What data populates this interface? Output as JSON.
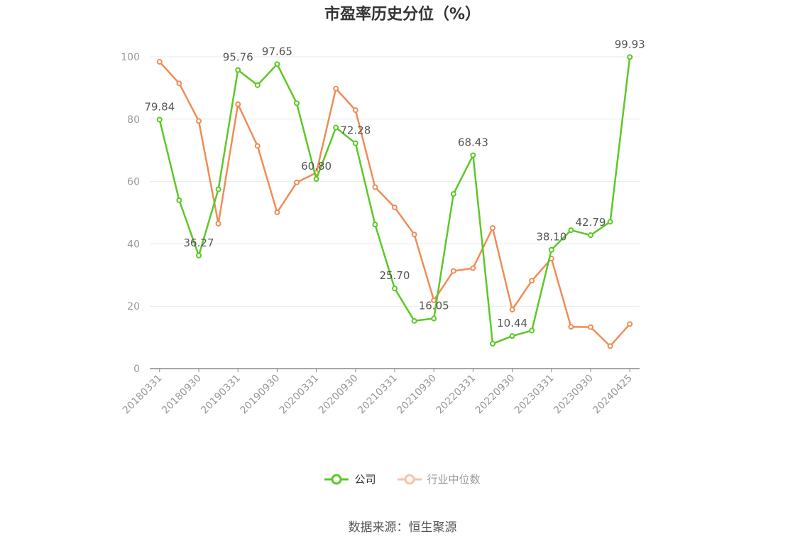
{
  "colors": {
    "company": "#5cc827",
    "industry": "#f08c56",
    "grid": "#e5e8ef",
    "axis": "#999999",
    "label": "#555555"
  },
  "chart_data": {
    "type": "line",
    "title": "市盈率历史分位（%）",
    "xlabel": "",
    "ylabel": "",
    "ylim": [
      0,
      100
    ],
    "yticks": [
      0,
      20,
      40,
      60,
      80,
      100
    ],
    "grid": true,
    "legend_position": "bottom",
    "x_tick_labels": [
      "20180331",
      "20180930",
      "20190331",
      "20190930",
      "20200331",
      "20200930",
      "20210331",
      "20210930",
      "20220331",
      "20220930",
      "20230331",
      "20230930",
      "20240425"
    ],
    "x": [
      "20180331",
      "20180630",
      "20180930",
      "20181231",
      "20190331",
      "20190630",
      "20190930",
      "20191231",
      "20200331",
      "20200630",
      "20200930",
      "20201231",
      "20210331",
      "20210630",
      "20210930",
      "20211231",
      "20220331",
      "20220630",
      "20220930",
      "20221231",
      "20230331",
      "20230630",
      "20230930",
      "20231231",
      "20240425"
    ],
    "series": [
      {
        "name": "公司",
        "values": [
          79.84,
          54.0,
          36.27,
          57.5,
          95.76,
          90.9,
          97.65,
          85.1,
          60.8,
          77.3,
          72.28,
          46.2,
          25.7,
          15.3,
          16.05,
          56.0,
          68.43,
          8.0,
          10.44,
          12.2,
          38.1,
          44.4,
          42.79,
          47.1,
          99.93
        ],
        "labels": [
          "79.84",
          "",
          "36.27",
          "",
          "95.76",
          "",
          "97.65",
          "",
          "60.80",
          "",
          "72.28",
          "",
          "25.70",
          "",
          "16.05",
          "",
          "68.43",
          "",
          "10.44",
          "",
          "38.10",
          "",
          "42.79",
          "",
          "99.93"
        ]
      },
      {
        "name": "行业中位数",
        "values": [
          98.4,
          91.5,
          79.4,
          46.5,
          84.8,
          71.4,
          50.1,
          59.7,
          62.8,
          89.8,
          82.9,
          58.2,
          51.7,
          43.0,
          21.9,
          31.3,
          32.2,
          45.1,
          18.9,
          28.2,
          35.3,
          13.4,
          13.3,
          7.2,
          14.3
        ]
      }
    ]
  },
  "source": "数据来源：恒生聚源"
}
